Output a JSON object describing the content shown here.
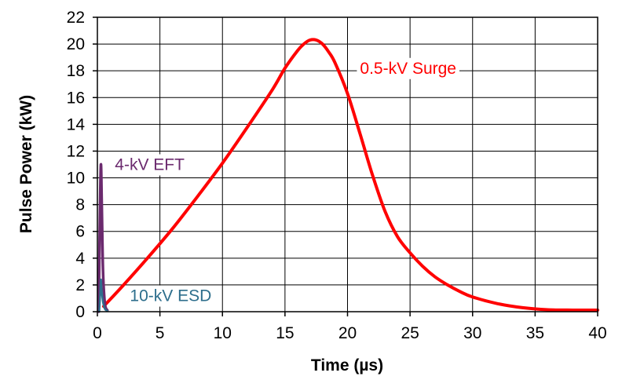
{
  "chart_data": {
    "type": "line",
    "title": "",
    "xlabel": "Time (µs)",
    "ylabel": "Pulse Power (kW)",
    "xlim": [
      0,
      40
    ],
    "ylim": [
      0,
      22
    ],
    "x_ticks": [
      0,
      5,
      10,
      15,
      20,
      25,
      30,
      35,
      40
    ],
    "y_ticks": [
      0,
      2,
      4,
      6,
      8,
      10,
      12,
      14,
      16,
      18,
      20,
      22
    ],
    "grid": true,
    "series": [
      {
        "name": "0.5-kV Surge",
        "color": "#ff0000",
        "label_at": [
          21,
          18.2
        ],
        "x": [
          0.5,
          2,
          4,
          6,
          8,
          10,
          12,
          14,
          15,
          16,
          16.5,
          17,
          17.5,
          18,
          18.5,
          19,
          20,
          21,
          22,
          23,
          24,
          25,
          26,
          27,
          28,
          29,
          30,
          32,
          34,
          36,
          38,
          40
        ],
        "y": [
          0.4,
          1.9,
          4.0,
          6.2,
          8.6,
          11.1,
          13.8,
          16.6,
          18.2,
          19.5,
          20.0,
          20.3,
          20.3,
          20.0,
          19.4,
          18.6,
          16.3,
          13.3,
          10.2,
          7.5,
          5.6,
          4.4,
          3.4,
          2.6,
          2.0,
          1.5,
          1.1,
          0.6,
          0.3,
          0.15,
          0.12,
          0.12
        ]
      },
      {
        "name": "4-kV EFT",
        "color": "#6b2a6e",
        "label_at": [
          1.4,
          11.0
        ],
        "x": [
          0.1,
          0.2,
          0.28,
          0.35,
          0.45,
          0.6,
          0.8
        ],
        "y": [
          0,
          7,
          11.0,
          8,
          3,
          0.6,
          0.1
        ]
      },
      {
        "name": "10-kV ESD",
        "color": "#2d6e8c",
        "label_at": [
          2.6,
          1.2
        ],
        "x": [
          0.15,
          0.22,
          0.28,
          0.34,
          0.45,
          0.6,
          0.8
        ],
        "y": [
          0,
          1.2,
          2.4,
          1.6,
          0.7,
          0.2,
          0.05
        ]
      }
    ]
  }
}
